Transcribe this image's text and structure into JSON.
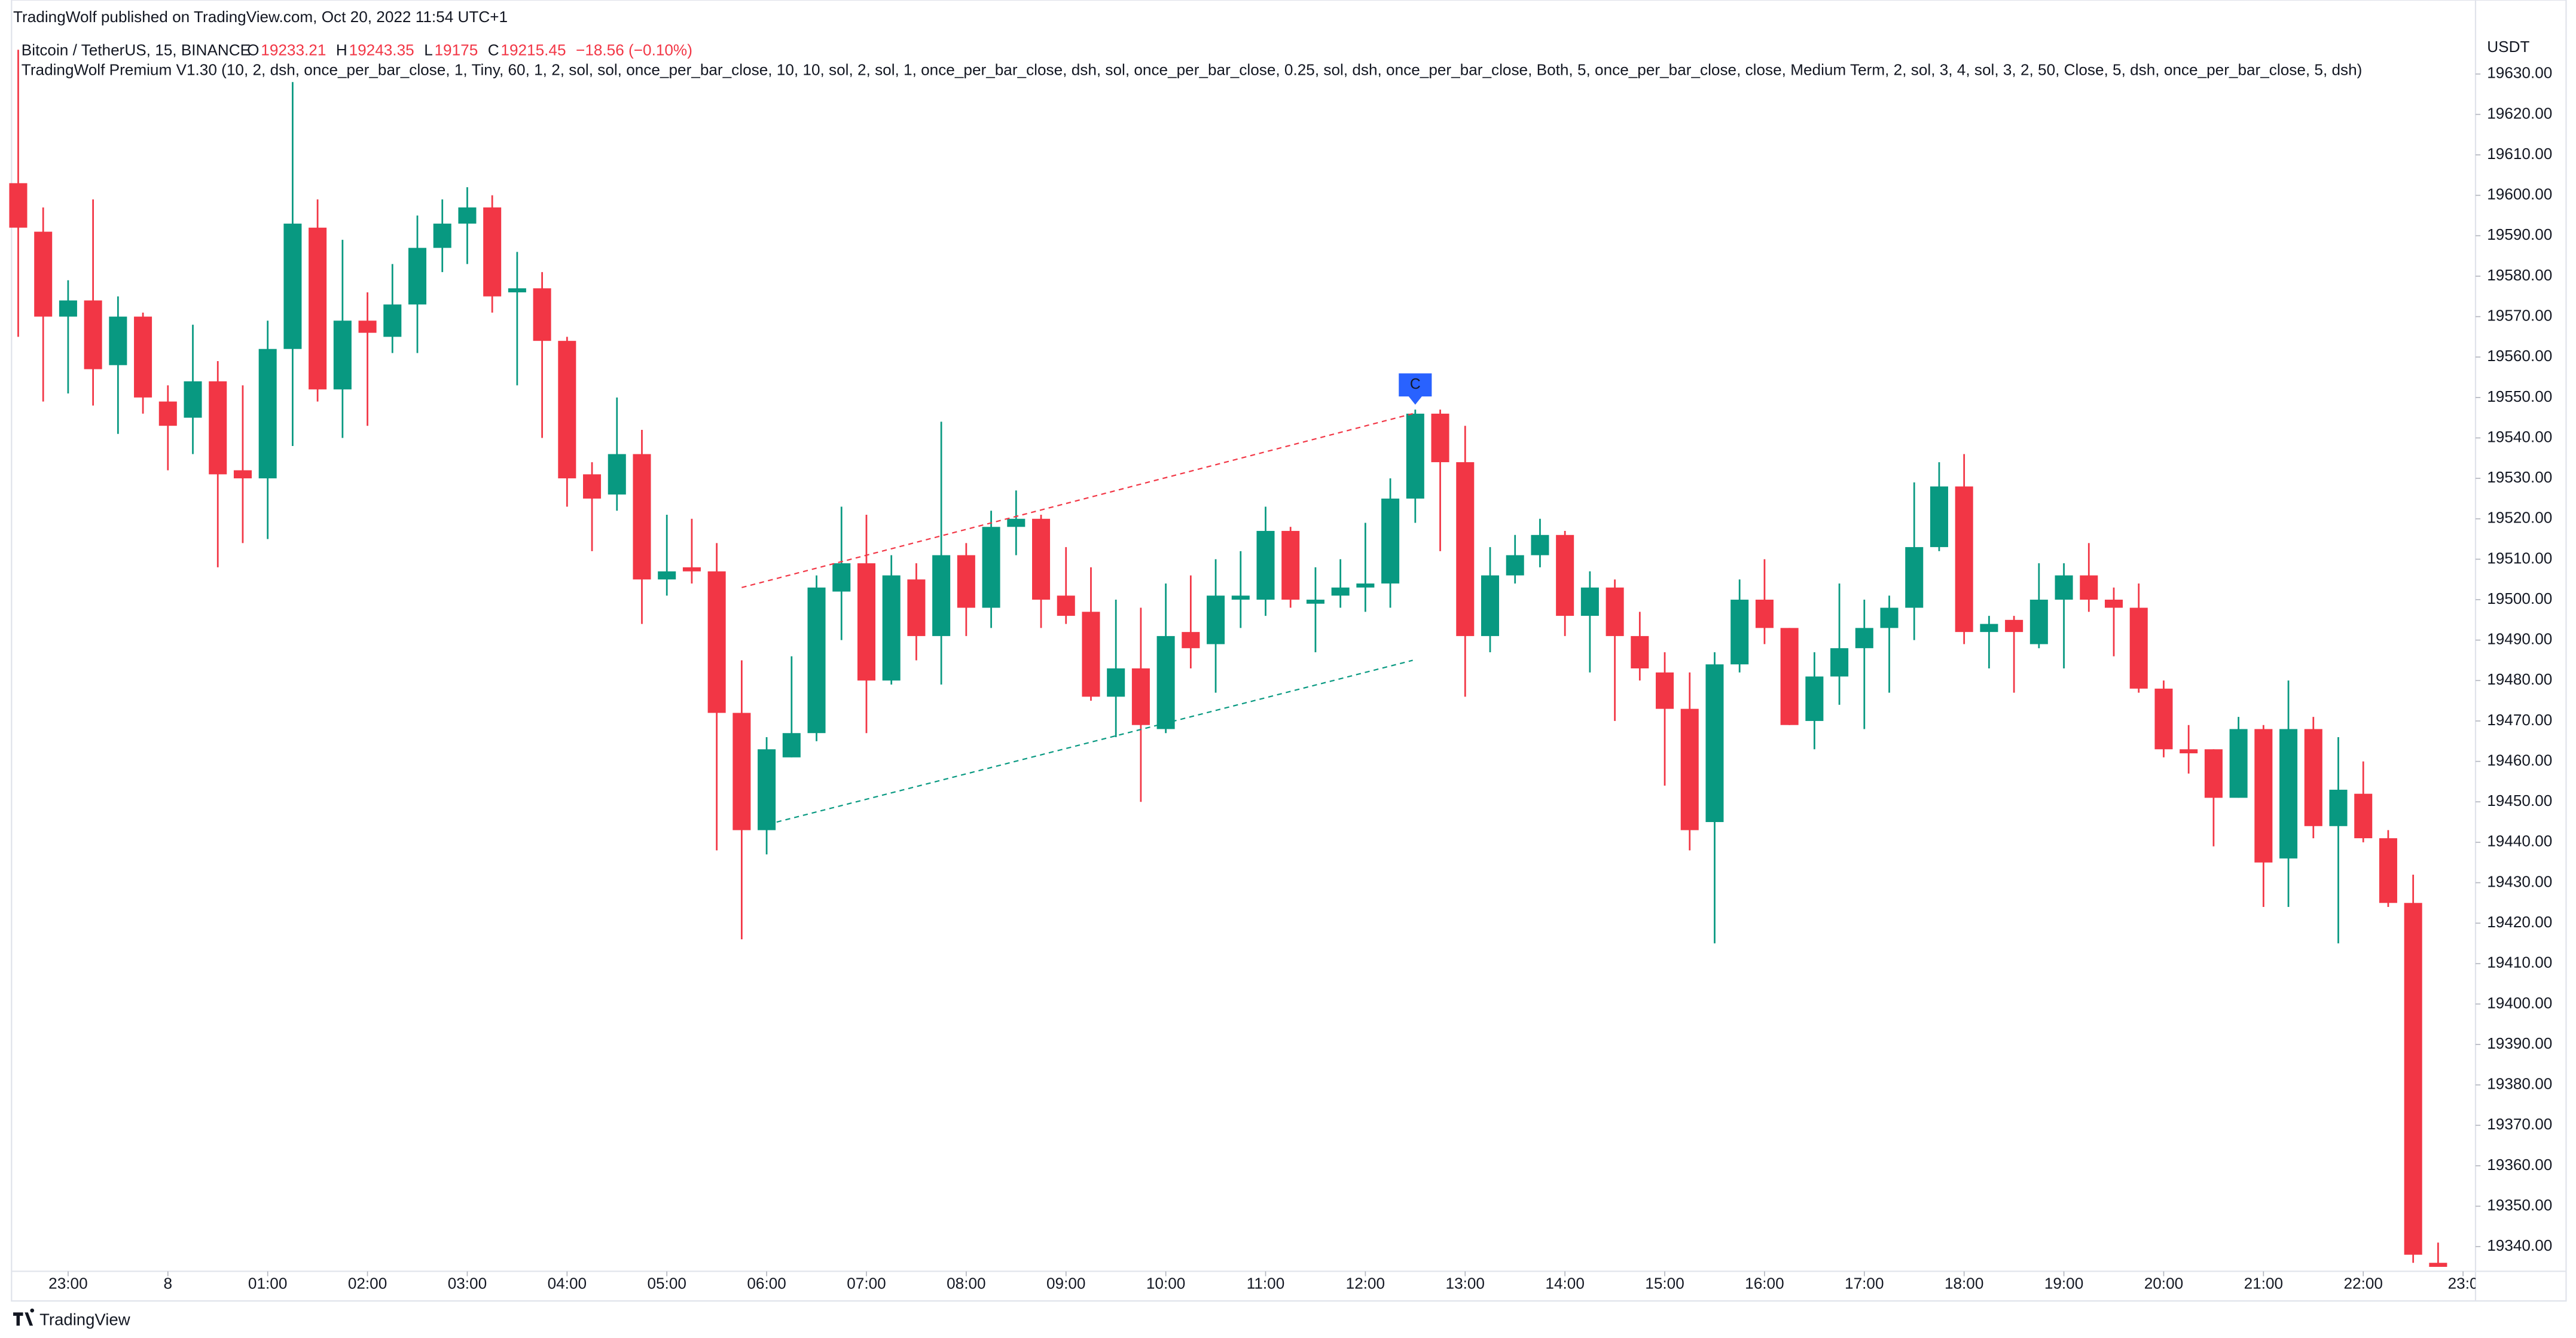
{
  "header": {
    "published": "TradingWolf published on TradingView.com, Oct 20, 2022 11:54 UTC+1",
    "symbol": "Bitcoin / TetherUS, 15, BINANCE",
    "ohlc": [
      {
        "label": "O",
        "value": 19233.21
      },
      {
        "label": "H",
        "value": 19243.35
      },
      {
        "label": "L",
        "value": 19175.0
      },
      {
        "label": "C",
        "value": 19215.45
      }
    ],
    "change": "−18.56 (−0.10%)",
    "indicator": "TradingWolf Premium V1.30 (10, 2, dsh, once_per_bar_close, 1, Tiny, 60, 1, 2, sol, sol, once_per_bar_close, 10, 10, sol, 2, sol, 1, once_per_bar_close, dsh, sol, once_per_bar_close, 0.25, sol, dsh, once_per_bar_close, Both, 5, once_per_bar_close, close, Medium Term, 2, sol, 3, 4, sol, 3, 2, 50, Close, 5, dsh, once_per_bar_close, 5, dsh)"
  },
  "footer": {
    "brand": "TradingView"
  },
  "chart_data": {
    "type": "candlestick",
    "up_color": "#089981",
    "down_color": "#f23645",
    "unit": "USDT",
    "open": [
      19603,
      19591,
      19570,
      19574,
      19558,
      19570,
      19549,
      19545,
      19554,
      19532,
      19530,
      19562,
      19592,
      19552,
      19569,
      19565,
      19573,
      19587,
      19593,
      19597,
      19576,
      19577,
      19564,
      19531,
      19526,
      19536,
      19505,
      19508,
      19507,
      19472,
      19443,
      19461,
      19467,
      19502,
      19509,
      19480,
      19505,
      19491,
      19511,
      19498,
      19518,
      19520,
      19501,
      19497,
      19476,
      19483,
      19468,
      19492,
      19489,
      19500,
      19500,
      19517,
      19499,
      19501,
      19503,
      19504,
      19525,
      19546,
      19534,
      19491,
      19506,
      19511,
      19516,
      19496,
      19503,
      19491,
      19482,
      19473,
      19445,
      19484,
      19500,
      19493,
      19470,
      19481,
      19488,
      19493,
      19498,
      19513,
      19528,
      19492,
      19495,
      19489,
      19500,
      19506,
      19500,
      19498,
      19478,
      19463,
      19463,
      19451,
      19468,
      19436,
      19468,
      19444,
      19452,
      19441,
      19425,
      19336
    ],
    "high": [
      19636,
      19597,
      19579,
      19599,
      19575,
      19571,
      19553,
      19568,
      19559,
      19553,
      19569,
      19628,
      19599,
      19589,
      19576,
      19583,
      19595,
      19599,
      19602,
      19600,
      19586,
      19581,
      19565,
      19534,
      19550,
      19542,
      19521,
      19520,
      19514,
      19485,
      19466,
      19486,
      19506,
      19523,
      19521,
      19511,
      19509,
      19544,
      19514,
      19522,
      19527,
      19521,
      19513,
      19508,
      19500,
      19498,
      19504,
      19506,
      19510,
      19512,
      19523,
      19518,
      19508,
      19510,
      19519,
      19530,
      19547,
      19547,
      19543,
      19513,
      19516,
      19520,
      19517,
      19507,
      19505,
      19497,
      19487,
      19482,
      19487,
      19505,
      19510,
      19493,
      19487,
      19504,
      19500,
      19501,
      19529,
      19534,
      19536,
      19496,
      19496,
      19509,
      19509,
      19514,
      19503,
      19504,
      19480,
      19469,
      19463,
      19471,
      19469,
      19480,
      19471,
      19466,
      19460,
      19443,
      19432,
      19341
    ],
    "low": [
      19565,
      19549,
      19551,
      19548,
      19541,
      19546,
      19532,
      19536,
      19508,
      19514,
      19515,
      19538,
      19549,
      19540,
      19543,
      19561,
      19561,
      19581,
      19583,
      19571,
      19553,
      19540,
      19523,
      19512,
      19522,
      19494,
      19501,
      19504,
      19438,
      19416,
      19437,
      19461,
      19465,
      19490,
      19467,
      19479,
      19485,
      19479,
      19491,
      19493,
      19511,
      19493,
      19494,
      19475,
      19466,
      19450,
      19467,
      19483,
      19477,
      19493,
      19496,
      19498,
      19487,
      19498,
      19497,
      19498,
      19519,
      19512,
      19476,
      19487,
      19504,
      19508,
      19491,
      19482,
      19470,
      19480,
      19454,
      19438,
      19415,
      19482,
      19489,
      19469,
      19463,
      19474,
      19468,
      19477,
      19490,
      19512,
      19489,
      19483,
      19477,
      19488,
      19483,
      19497,
      19486,
      19477,
      19461,
      19457,
      19439,
      19451,
      19424,
      19424,
      19441,
      19415,
      19440,
      19424,
      19336,
      19335
    ],
    "close": [
      19592,
      19570,
      19574,
      19557,
      19570,
      19550,
      19543,
      19554,
      19531,
      19530,
      19562,
      19593,
      19552,
      19569,
      19566,
      19573,
      19587,
      19593,
      19597,
      19575,
      19577,
      19564,
      19530,
      19525,
      19536,
      19505,
      19507,
      19507,
      19472,
      19443,
      19463,
      19467,
      19503,
      19509,
      19480,
      19506,
      19491,
      19511,
      19498,
      19518,
      19520,
      19500,
      19496,
      19476,
      19483,
      19469,
      19491,
      19488,
      19501,
      19501,
      19517,
      19500,
      19500,
      19503,
      19504,
      19525,
      19546,
      19534,
      19491,
      19506,
      19511,
      19516,
      19496,
      19503,
      19491,
      19483,
      19473,
      19443,
      19484,
      19500,
      19493,
      19469,
      19481,
      19488,
      19493,
      19498,
      19513,
      19528,
      19492,
      19494,
      19492,
      19500,
      19506,
      19500,
      19498,
      19478,
      19463,
      19462,
      19451,
      19468,
      19435,
      19468,
      19444,
      19453,
      19441,
      19425,
      19338,
      19335
    ],
    "xlim": [
      -0.73,
      98.5
    ],
    "ylim": [
      19333.9,
      19648.3
    ],
    "xticks": [
      {
        "value": 2,
        "label": "23:00"
      },
      {
        "value": 6,
        "label": "8"
      },
      {
        "value": 10,
        "label": "01:00"
      },
      {
        "value": 14,
        "label": "02:00"
      },
      {
        "value": 18,
        "label": "03:00"
      },
      {
        "value": 22,
        "label": "04:00"
      },
      {
        "value": 26,
        "label": "05:00"
      },
      {
        "value": 30,
        "label": "06:00"
      },
      {
        "value": 34,
        "label": "07:00"
      },
      {
        "value": 38,
        "label": "08:00"
      },
      {
        "value": 42,
        "label": "09:00"
      },
      {
        "value": 46,
        "label": "10:00"
      },
      {
        "value": 50,
        "label": "11:00"
      },
      {
        "value": 54,
        "label": "12:00"
      },
      {
        "value": 58,
        "label": "13:00"
      },
      {
        "value": 62,
        "label": "14:00"
      },
      {
        "value": 66,
        "label": "15:00"
      },
      {
        "value": 70,
        "label": "16:00"
      },
      {
        "value": 74,
        "label": "17:00"
      },
      {
        "value": 78,
        "label": "18:00"
      },
      {
        "value": 82,
        "label": "19:00"
      },
      {
        "value": 86,
        "label": "20:00"
      },
      {
        "value": 90,
        "label": "21:00"
      },
      {
        "value": 94,
        "label": "22:00"
      },
      {
        "value": 98,
        "label": "23:0"
      }
    ],
    "yticks": [
      {
        "value": 19630,
        "label": "19630.00"
      },
      {
        "value": 19620,
        "label": "19620.00"
      },
      {
        "value": 19610,
        "label": "19610.00"
      },
      {
        "value": 19600,
        "label": "19600.00"
      },
      {
        "value": 19590,
        "label": "19590.00"
      },
      {
        "value": 19580,
        "label": "19580.00"
      },
      {
        "value": 19570,
        "label": "19570.00"
      },
      {
        "value": 19560,
        "label": "19560.00"
      },
      {
        "value": 19550,
        "label": "19550.00"
      },
      {
        "value": 19540,
        "label": "19540.00"
      },
      {
        "value": 19530,
        "label": "19530.00"
      },
      {
        "value": 19520,
        "label": "19520.00"
      },
      {
        "value": 19510,
        "label": "19510.00"
      },
      {
        "value": 19500,
        "label": "19500.00"
      },
      {
        "value": 19490,
        "label": "19490.00"
      },
      {
        "value": 19480,
        "label": "19480.00"
      },
      {
        "value": 19470,
        "label": "19470.00"
      },
      {
        "value": 19460,
        "label": "19460.00"
      },
      {
        "value": 19450,
        "label": "19450.00"
      },
      {
        "value": 19440,
        "label": "19440.00"
      },
      {
        "value": 19430,
        "label": "19430.00"
      },
      {
        "value": 19420,
        "label": "19420.00"
      },
      {
        "value": 19410,
        "label": "19410.00"
      },
      {
        "value": 19400,
        "label": "19400.00"
      },
      {
        "value": 19390,
        "label": "19390.00"
      },
      {
        "value": 19380,
        "label": "19380.00"
      },
      {
        "value": 19370,
        "label": "19370.00"
      },
      {
        "value": 19360,
        "label": "19360.00"
      },
      {
        "value": 19350,
        "label": "19350.00"
      },
      {
        "value": 19340,
        "label": "19340.00"
      }
    ],
    "grid": false,
    "trend_lines": [
      {
        "color": "#f23645",
        "x": [
          29,
          55.9
        ],
        "values": [
          19503,
          19546
        ]
      },
      {
        "color": "#089981",
        "x": [
          30.4,
          55.9
        ],
        "values": [
          19445,
          19485
        ]
      }
    ],
    "annotations": [
      {
        "text": "C",
        "x": 56,
        "color": "#2962ff"
      }
    ]
  }
}
